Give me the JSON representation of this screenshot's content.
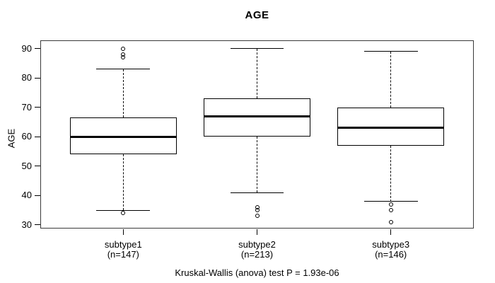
{
  "figure": {
    "title": "AGE",
    "y_axis_label": "AGE",
    "caption": "Kruskal-Wallis (anova) test P = 1.93e-06"
  },
  "chart_data": {
    "type": "boxplot",
    "title": "AGE",
    "xlabel": "",
    "ylabel": "AGE",
    "ylim": [
      30,
      90
    ],
    "yticks": [
      30,
      40,
      50,
      60,
      70,
      80,
      90
    ],
    "grid": false,
    "legend": false,
    "categories": [
      "subtype1",
      "subtype2",
      "subtype3"
    ],
    "category_counts": [
      "(n=147)",
      "(n=213)",
      "(n=146)"
    ],
    "annotation": "Kruskal-Wallis (anova) test P = 1.93e-06",
    "series": [
      {
        "name": "subtype1",
        "n": 147,
        "lower_whisker": 35,
        "q1": 54,
        "median": 60,
        "q3": 66.5,
        "upper_whisker": 83,
        "outliers": [
          34,
          87,
          88,
          90
        ]
      },
      {
        "name": "subtype2",
        "n": 213,
        "lower_whisker": 41,
        "q1": 60,
        "median": 67,
        "q3": 73,
        "upper_whisker": 90,
        "outliers": [
          33,
          35,
          36
        ]
      },
      {
        "name": "subtype3",
        "n": 146,
        "lower_whisker": 38,
        "q1": 57,
        "median": 63,
        "q3": 70,
        "upper_whisker": 89,
        "outliers": [
          31,
          35,
          37
        ]
      }
    ]
  },
  "colors": {
    "stroke": "#000000",
    "background": "#ffffff"
  }
}
